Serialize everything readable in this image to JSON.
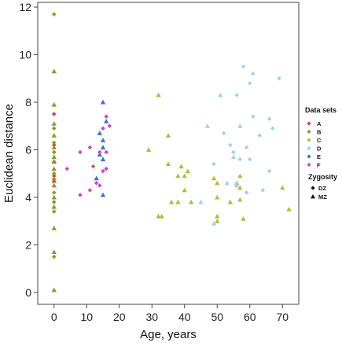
{
  "chart_data": {
    "type": "scatter",
    "title": "",
    "xlabel": "Age, years",
    "ylabel": "Euclidean distance",
    "xlim": [
      -5,
      75
    ],
    "ylim": [
      -0.5,
      12.2
    ],
    "xticks": [
      0,
      10,
      20,
      30,
      40,
      50,
      60,
      70
    ],
    "yticks": [
      0,
      2,
      4,
      6,
      8,
      10,
      12
    ],
    "grid": false,
    "legend_placement": "right",
    "legend": {
      "datasets_title": "Data sets",
      "zygosity_title": "Zygosity",
      "zygosity_items": [
        {
          "label": "DZ",
          "marker": "diamond"
        },
        {
          "label": "MZ",
          "marker": "triangle"
        }
      ]
    },
    "series": [
      {
        "name": "A",
        "color": "#e0412b",
        "points": [
          {
            "x": 0,
            "y": 7.5,
            "m": "diamond"
          },
          {
            "x": 0,
            "y": 6.2,
            "m": "diamond"
          },
          {
            "x": 0,
            "y": 5.5,
            "m": "triangle"
          },
          {
            "x": 0,
            "y": 4.9,
            "m": "diamond"
          },
          {
            "x": 0,
            "y": 4.7,
            "m": "triangle"
          }
        ]
      },
      {
        "name": "B",
        "color": "#8a9a2c",
        "points": [
          {
            "x": 0,
            "y": 11.7,
            "m": "diamond"
          },
          {
            "x": 0,
            "y": 9.3,
            "m": "triangle"
          },
          {
            "x": 0,
            "y": 7.9,
            "m": "triangle"
          },
          {
            "x": 0,
            "y": 7.1,
            "m": "triangle"
          },
          {
            "x": 0,
            "y": 6.9,
            "m": "diamond"
          },
          {
            "x": 0,
            "y": 6.6,
            "m": "triangle"
          },
          {
            "x": 0,
            "y": 6.3,
            "m": "diamond"
          },
          {
            "x": 0,
            "y": 6.1,
            "m": "triangle"
          },
          {
            "x": 0,
            "y": 5.9,
            "m": "diamond"
          },
          {
            "x": 0,
            "y": 5.7,
            "m": "triangle"
          },
          {
            "x": 0,
            "y": 5.5,
            "m": "diamond"
          },
          {
            "x": 0,
            "y": 5.2,
            "m": "triangle"
          },
          {
            "x": 0,
            "y": 5.0,
            "m": "diamond"
          },
          {
            "x": 0,
            "y": 4.8,
            "m": "triangle"
          },
          {
            "x": 0,
            "y": 4.5,
            "m": "triangle"
          },
          {
            "x": 0,
            "y": 4.2,
            "m": "diamond"
          },
          {
            "x": 0,
            "y": 4.0,
            "m": "triangle"
          },
          {
            "x": 0,
            "y": 3.8,
            "m": "diamond"
          },
          {
            "x": 0,
            "y": 3.6,
            "m": "triangle"
          },
          {
            "x": 0,
            "y": 3.4,
            "m": "diamond"
          },
          {
            "x": 0,
            "y": 2.7,
            "m": "triangle"
          },
          {
            "x": 0,
            "y": 1.7,
            "m": "triangle"
          },
          {
            "x": 0,
            "y": 1.5,
            "m": "diamond"
          },
          {
            "x": 0,
            "y": 0.1,
            "m": "triangle"
          }
        ]
      },
      {
        "name": "C",
        "color": "#a8c23a",
        "points": [
          {
            "x": 29,
            "y": 6.0,
            "m": "triangle"
          },
          {
            "x": 32,
            "y": 8.3,
            "m": "triangle"
          },
          {
            "x": 32,
            "y": 3.2,
            "m": "triangle"
          },
          {
            "x": 33,
            "y": 3.2,
            "m": "triangle"
          },
          {
            "x": 35,
            "y": 6.6,
            "m": "triangle"
          },
          {
            "x": 35,
            "y": 5.4,
            "m": "triangle"
          },
          {
            "x": 36,
            "y": 3.8,
            "m": "triangle"
          },
          {
            "x": 38,
            "y": 3.8,
            "m": "triangle"
          },
          {
            "x": 38,
            "y": 4.9,
            "m": "triangle"
          },
          {
            "x": 39,
            "y": 5.3,
            "m": "triangle"
          },
          {
            "x": 40,
            "y": 4.9,
            "m": "triangle"
          },
          {
            "x": 40,
            "y": 4.3,
            "m": "triangle"
          },
          {
            "x": 41,
            "y": 5.1,
            "m": "triangle"
          },
          {
            "x": 42,
            "y": 3.8,
            "m": "triangle"
          },
          {
            "x": 49,
            "y": 4.8,
            "m": "triangle"
          },
          {
            "x": 50,
            "y": 4.6,
            "m": "triangle"
          },
          {
            "x": 50,
            "y": 3.0,
            "m": "triangle"
          },
          {
            "x": 50,
            "y": 3.2,
            "m": "triangle"
          },
          {
            "x": 50,
            "y": 4.0,
            "m": "triangle"
          },
          {
            "x": 54,
            "y": 3.8,
            "m": "triangle"
          },
          {
            "x": 56,
            "y": 4.6,
            "m": "triangle"
          },
          {
            "x": 57,
            "y": 4.9,
            "m": "triangle"
          },
          {
            "x": 57,
            "y": 4.4,
            "m": "triangle"
          },
          {
            "x": 57,
            "y": 3.9,
            "m": "triangle"
          },
          {
            "x": 58,
            "y": 3.1,
            "m": "triangle"
          },
          {
            "x": 70,
            "y": 4.4,
            "m": "triangle"
          },
          {
            "x": 72,
            "y": 3.5,
            "m": "triangle"
          }
        ]
      },
      {
        "name": "D",
        "color": "#a9cfe8",
        "points": [
          {
            "x": 45,
            "y": 3.8,
            "m": "triangle"
          },
          {
            "x": 47,
            "y": 7.0,
            "m": "triangle"
          },
          {
            "x": 49,
            "y": 5.4,
            "m": "diamond"
          },
          {
            "x": 49,
            "y": 2.9,
            "m": "triangle"
          },
          {
            "x": 51,
            "y": 8.3,
            "m": "triangle"
          },
          {
            "x": 52,
            "y": 6.7,
            "m": "diamond"
          },
          {
            "x": 53,
            "y": 4.6,
            "m": "triangle"
          },
          {
            "x": 54,
            "y": 6.2,
            "m": "diamond"
          },
          {
            "x": 55,
            "y": 5.9,
            "m": "diamond"
          },
          {
            "x": 55,
            "y": 5.7,
            "m": "triangle"
          },
          {
            "x": 56,
            "y": 8.3,
            "m": "diamond"
          },
          {
            "x": 56,
            "y": 4.6,
            "m": "diamond"
          },
          {
            "x": 56,
            "y": 4.5,
            "m": "triangle"
          },
          {
            "x": 57,
            "y": 5.6,
            "m": "diamond"
          },
          {
            "x": 57,
            "y": 7.0,
            "m": "triangle"
          },
          {
            "x": 58,
            "y": 9.5,
            "m": "diamond"
          },
          {
            "x": 59,
            "y": 6.1,
            "m": "diamond"
          },
          {
            "x": 59,
            "y": 4.2,
            "m": "diamond"
          },
          {
            "x": 60,
            "y": 8.8,
            "m": "diamond"
          },
          {
            "x": 60,
            "y": 5.6,
            "m": "diamond"
          },
          {
            "x": 61,
            "y": 9.2,
            "m": "diamond"
          },
          {
            "x": 61,
            "y": 7.4,
            "m": "diamond"
          },
          {
            "x": 63,
            "y": 6.6,
            "m": "diamond"
          },
          {
            "x": 64,
            "y": 4.3,
            "m": "diamond"
          },
          {
            "x": 66,
            "y": 5.1,
            "m": "diamond"
          },
          {
            "x": 66,
            "y": 7.3,
            "m": "diamond"
          },
          {
            "x": 67,
            "y": 6.9,
            "m": "diamond"
          },
          {
            "x": 69,
            "y": 9.0,
            "m": "diamond"
          }
        ]
      },
      {
        "name": "E",
        "color": "#3f6fc7",
        "points": [
          {
            "x": 13,
            "y": 4.8,
            "m": "triangle"
          },
          {
            "x": 14,
            "y": 5.8,
            "m": "triangle"
          },
          {
            "x": 14,
            "y": 6.7,
            "m": "triangle"
          },
          {
            "x": 15,
            "y": 8.0,
            "m": "triangle"
          },
          {
            "x": 15,
            "y": 6.4,
            "m": "triangle"
          },
          {
            "x": 15,
            "y": 6.1,
            "m": "triangle"
          },
          {
            "x": 15,
            "y": 5.6,
            "m": "triangle"
          },
          {
            "x": 15,
            "y": 4.1,
            "m": "triangle"
          },
          {
            "x": 16,
            "y": 7.2,
            "m": "triangle"
          }
        ]
      },
      {
        "name": "F",
        "color": "#c94eb6",
        "points": [
          {
            "x": 4,
            "y": 5.2,
            "m": "diamond"
          },
          {
            "x": 8,
            "y": 5.9,
            "m": "diamond"
          },
          {
            "x": 8,
            "y": 4.1,
            "m": "diamond"
          },
          {
            "x": 11,
            "y": 6.1,
            "m": "diamond"
          },
          {
            "x": 11,
            "y": 4.3,
            "m": "diamond"
          },
          {
            "x": 12,
            "y": 5.3,
            "m": "diamond"
          },
          {
            "x": 13,
            "y": 4.6,
            "m": "diamond"
          },
          {
            "x": 14,
            "y": 4.5,
            "m": "diamond"
          },
          {
            "x": 14,
            "y": 5.9,
            "m": "diamond"
          },
          {
            "x": 15,
            "y": 5.1,
            "m": "diamond"
          },
          {
            "x": 15,
            "y": 6.9,
            "m": "diamond"
          },
          {
            "x": 16,
            "y": 7.4,
            "m": "diamond"
          },
          {
            "x": 16,
            "y": 5.2,
            "m": "diamond"
          },
          {
            "x": 16,
            "y": 5.9,
            "m": "diamond"
          },
          {
            "x": 17,
            "y": 7.0,
            "m": "diamond"
          }
        ]
      }
    ]
  }
}
